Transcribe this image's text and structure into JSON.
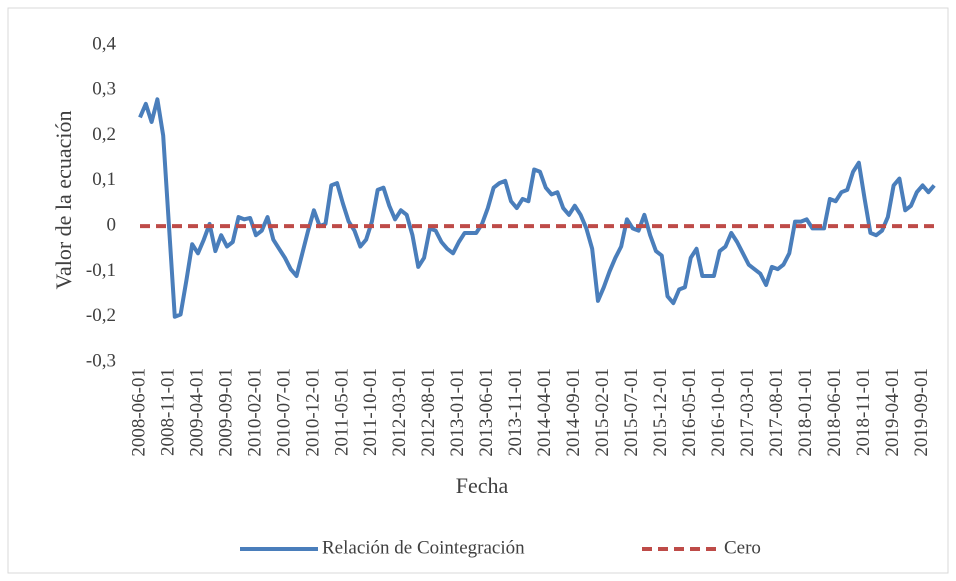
{
  "chart_data": {
    "type": "line",
    "y_label": "Valor de la ecuación",
    "x_label": "Fecha",
    "categories": [
      "2008-06-01",
      null,
      null,
      null,
      null,
      "2008-11-01",
      null,
      null,
      null,
      null,
      "2009-04-01",
      null,
      null,
      null,
      null,
      "2009-09-01",
      null,
      null,
      null,
      null,
      "2010-02-01",
      null,
      null,
      null,
      null,
      "2010-07-01",
      null,
      null,
      null,
      null,
      "2010-12-01",
      null,
      null,
      null,
      null,
      "2011-05-01",
      null,
      null,
      null,
      null,
      "2011-10-01",
      null,
      null,
      null,
      null,
      "2012-03-01",
      null,
      null,
      null,
      null,
      "2012-08-01",
      null,
      null,
      null,
      null,
      "2013-01-01",
      null,
      null,
      null,
      null,
      "2013-06-01",
      null,
      null,
      null,
      null,
      "2013-11-01",
      null,
      null,
      null,
      null,
      "2014-04-01",
      null,
      null,
      null,
      null,
      "2014-09-01",
      null,
      null,
      null,
      null,
      "2015-02-01",
      null,
      null,
      null,
      null,
      "2015-07-01",
      null,
      null,
      null,
      null,
      "2015-12-01",
      null,
      null,
      null,
      null,
      "2016-05-01",
      null,
      null,
      null,
      null,
      "2016-10-01",
      null,
      null,
      null,
      null,
      "2017-03-01",
      null,
      null,
      null,
      null,
      "2017-08-01",
      null,
      null,
      null,
      null,
      "2018-01-01",
      null,
      null,
      null,
      null,
      "2018-06-01",
      null,
      null,
      null,
      null,
      "2018-11-01",
      null,
      null,
      null,
      null,
      "2019-04-01",
      null,
      null,
      null,
      null,
      "2019-09-01",
      null,
      null
    ],
    "series": [
      {
        "name": "Relación de Cointegración",
        "color": "#4a7ebb",
        "style": "solid",
        "values": [
          0.24,
          0.27,
          0.23,
          0.28,
          0.2,
          0.0,
          -0.2,
          -0.195,
          -0.12,
          -0.04,
          -0.06,
          -0.03,
          0.005,
          -0.055,
          -0.02,
          -0.045,
          -0.035,
          0.02,
          0.015,
          0.018,
          -0.02,
          -0.01,
          0.02,
          -0.03,
          -0.05,
          -0.07,
          -0.095,
          -0.11,
          -0.06,
          -0.01,
          0.035,
          0.0,
          0.005,
          0.09,
          0.095,
          0.05,
          0.01,
          -0.01,
          -0.045,
          -0.03,
          0.01,
          0.08,
          0.085,
          0.045,
          0.015,
          0.035,
          0.025,
          -0.02,
          -0.09,
          -0.07,
          -0.005,
          -0.01,
          -0.035,
          -0.05,
          -0.06,
          -0.035,
          -0.015,
          -0.015,
          -0.015,
          0.005,
          0.04,
          0.085,
          0.095,
          0.1,
          0.055,
          0.04,
          0.06,
          0.055,
          0.125,
          0.12,
          0.085,
          0.07,
          0.075,
          0.04,
          0.025,
          0.045,
          0.025,
          -0.005,
          -0.05,
          -0.165,
          -0.135,
          -0.1,
          -0.07,
          -0.045,
          0.015,
          -0.005,
          -0.01,
          0.025,
          -0.02,
          -0.055,
          -0.065,
          -0.155,
          -0.17,
          -0.14,
          -0.135,
          -0.07,
          -0.05,
          -0.11,
          -0.11,
          -0.11,
          -0.055,
          -0.045,
          -0.015,
          -0.035,
          -0.06,
          -0.085,
          -0.095,
          -0.105,
          -0.13,
          -0.09,
          -0.095,
          -0.085,
          -0.06,
          0.01,
          0.01,
          0.015,
          -0.005,
          -0.005,
          -0.005,
          0.06,
          0.055,
          0.075,
          0.08,
          0.12,
          0.14,
          0.06,
          -0.015,
          -0.02,
          -0.01,
          0.02,
          0.09,
          0.105,
          0.035,
          0.045,
          0.075,
          0.09,
          0.075,
          0.09
        ]
      },
      {
        "name": "Cero",
        "color": "#be4b48",
        "style": "dashed",
        "values": [
          0,
          0,
          0,
          0,
          0,
          0,
          0,
          0,
          0,
          0,
          0,
          0,
          0,
          0,
          0,
          0,
          0,
          0,
          0,
          0,
          0,
          0,
          0,
          0,
          0,
          0,
          0,
          0,
          0,
          0,
          0,
          0,
          0,
          0,
          0,
          0,
          0,
          0,
          0,
          0,
          0,
          0,
          0,
          0,
          0,
          0,
          0,
          0,
          0,
          0,
          0,
          0,
          0,
          0,
          0,
          0,
          0,
          0,
          0,
          0,
          0,
          0,
          0,
          0,
          0,
          0,
          0,
          0,
          0,
          0,
          0,
          0,
          0,
          0,
          0,
          0,
          0,
          0,
          0,
          0,
          0,
          0,
          0,
          0,
          0,
          0,
          0,
          0,
          0,
          0,
          0,
          0,
          0,
          0,
          0,
          0,
          0,
          0,
          0,
          0,
          0,
          0,
          0,
          0,
          0,
          0,
          0,
          0,
          0,
          0,
          0,
          0,
          0,
          0,
          0,
          0,
          0,
          0,
          0,
          0,
          0,
          0,
          0,
          0,
          0,
          0,
          0,
          0,
          0,
          0,
          0,
          0,
          0,
          0,
          0,
          0,
          0,
          0
        ]
      }
    ],
    "ylim": [
      -0.3,
      0.4
    ],
    "yticks": [
      {
        "value": -0.3,
        "label": "-0,3"
      },
      {
        "value": -0.2,
        "label": "-0,2"
      },
      {
        "value": -0.1,
        "label": "-0,1"
      },
      0,
      {
        "value": 0.1,
        "label": "0,1"
      },
      {
        "value": 0.2,
        "label": "0,2"
      },
      {
        "value": 0.3,
        "label": "0,3"
      },
      {
        "value": 0.4,
        "label": "0,4"
      }
    ],
    "grid": false,
    "legend": "bottom"
  }
}
